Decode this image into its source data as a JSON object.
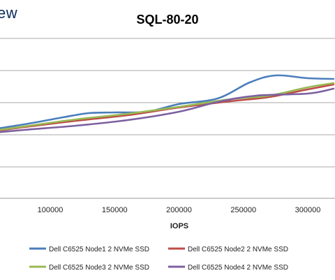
{
  "logo": {
    "text": "ew"
  },
  "chart_data": {
    "type": "line",
    "title": "SQL-80-20",
    "xlabel": "IOPS",
    "ylabel": "",
    "xticks": [
      100000,
      150000,
      200000,
      250000,
      300000
    ],
    "xtick_labels": [
      "100000",
      "150000",
      "200000",
      "250000",
      "300000"
    ],
    "grid": true,
    "legend_position": "bottom",
    "series": [
      {
        "name": "Dell C6525 Node1 2 NVMe SSD",
        "color": "#4a7ebb",
        "points": [
          [
            45000,
            188
          ],
          [
            80000,
            178
          ],
          [
            110000,
            168
          ],
          [
            130000,
            162
          ],
          [
            150000,
            161
          ],
          [
            175000,
            160
          ],
          [
            200000,
            149
          ],
          [
            230000,
            141
          ],
          [
            255000,
            118
          ],
          [
            275000,
            108
          ],
          [
            300000,
            112
          ],
          [
            320000,
            113
          ]
        ]
      },
      {
        "name": "Dell C6525 Node2 2 NVMe SSD",
        "color": "#be4b48",
        "points": [
          [
            45000,
            191
          ],
          [
            80000,
            182
          ],
          [
            120000,
            173
          ],
          [
            160000,
            165
          ],
          [
            200000,
            154
          ],
          [
            240000,
            145
          ],
          [
            270000,
            139
          ],
          [
            300000,
            128
          ],
          [
            320000,
            121
          ]
        ]
      },
      {
        "name": "Dell C6525 Node3 2 NVMe SSD",
        "color": "#98b954",
        "points": [
          [
            45000,
            190
          ],
          [
            80000,
            181
          ],
          [
            120000,
            171
          ],
          [
            160000,
            163
          ],
          [
            200000,
            153
          ],
          [
            240000,
            142
          ],
          [
            270000,
            137
          ],
          [
            300000,
            125
          ],
          [
            320000,
            119
          ]
        ]
      },
      {
        "name": "Dell C6525 Node4 2 NVMe SSD",
        "color": "#7d60a0",
        "points": [
          [
            45000,
            192
          ],
          [
            80000,
            186
          ],
          [
            120000,
            180
          ],
          [
            160000,
            172
          ],
          [
            200000,
            160
          ],
          [
            230000,
            146
          ],
          [
            260000,
            137
          ],
          [
            300000,
            134
          ],
          [
            320000,
            127
          ]
        ]
      }
    ]
  }
}
